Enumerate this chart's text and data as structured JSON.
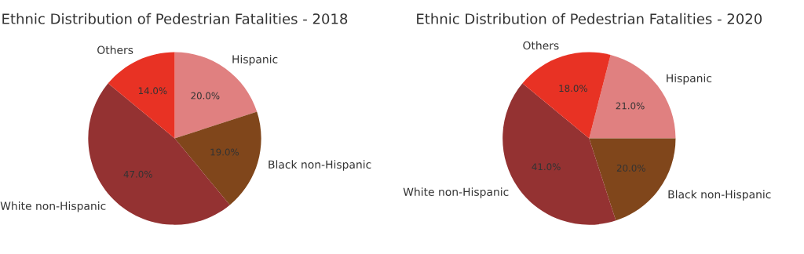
{
  "chart_data": [
    {
      "type": "pie",
      "title": "Ethnic Distribution of Pedestrian Fatalities - 2018",
      "categories": [
        "Hispanic",
        "Black non-Hispanic",
        "White non-Hispanic",
        "Others"
      ],
      "values": [
        20,
        19,
        47,
        14
      ],
      "colors": [
        "#e08080",
        "#80461b",
        "#943232",
        "#e83224"
      ],
      "value_labels": [
        "20.0%",
        "19.0%",
        "47.0%",
        "14.0%"
      ]
    },
    {
      "type": "pie",
      "title": "Ethnic Distribution of Pedestrian Fatalities - 2020",
      "categories": [
        "Hispanic",
        "Black non-Hispanic",
        "White non-Hispanic",
        "Others"
      ],
      "values": [
        21,
        20,
        41,
        18
      ],
      "colors": [
        "#e08080",
        "#80461b",
        "#943232",
        "#e83224"
      ],
      "value_labels": [
        "21.0%",
        "20.0%",
        "41.0%",
        "18.0%"
      ]
    }
  ]
}
